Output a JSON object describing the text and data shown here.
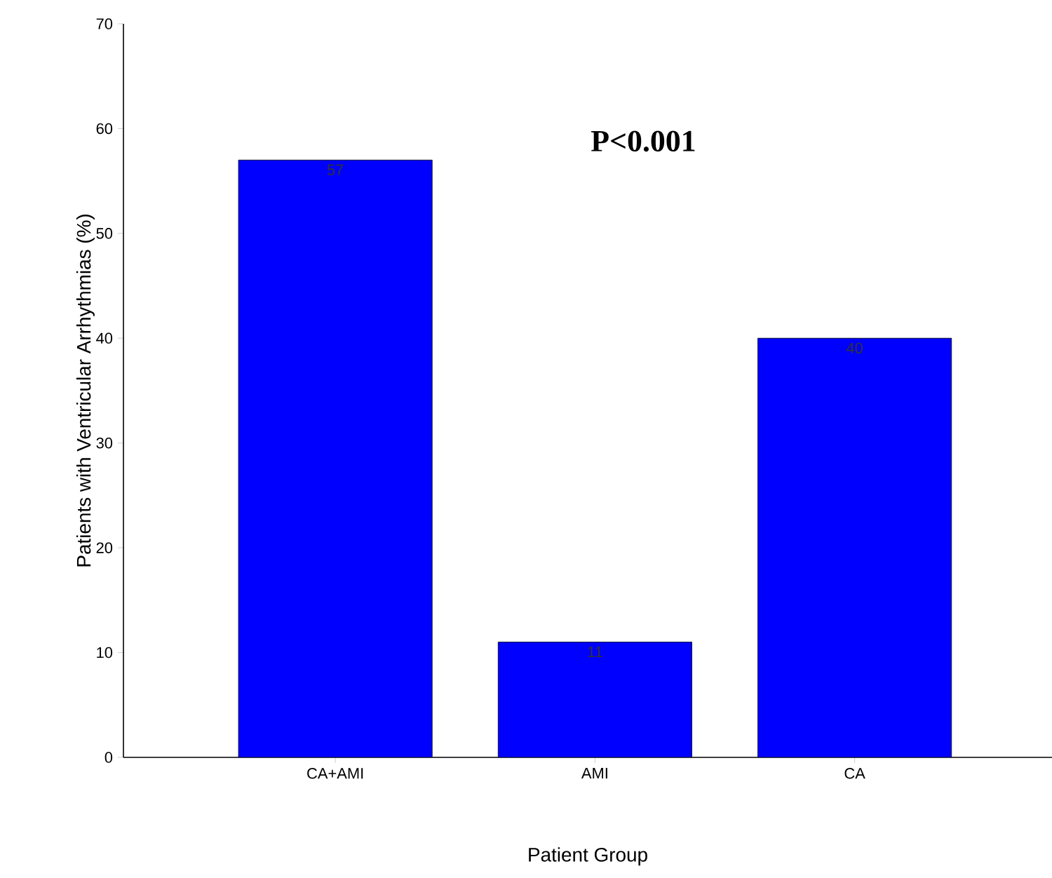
{
  "chart_data": {
    "type": "bar",
    "categories": [
      "CA+AMI",
      "AMI",
      "CA"
    ],
    "values": [
      57,
      11,
      40
    ],
    "color": "#0000ff",
    "xlabel": "Patient Group",
    "ylabel": "Patients with Ventricular Arrhythmias (%)",
    "ylim": [
      0,
      70
    ],
    "yticks": [
      0,
      10,
      20,
      30,
      40,
      50,
      60,
      70
    ],
    "data_labels": true,
    "grid": false,
    "annotations": [
      "**P<0.001**"
    ]
  }
}
